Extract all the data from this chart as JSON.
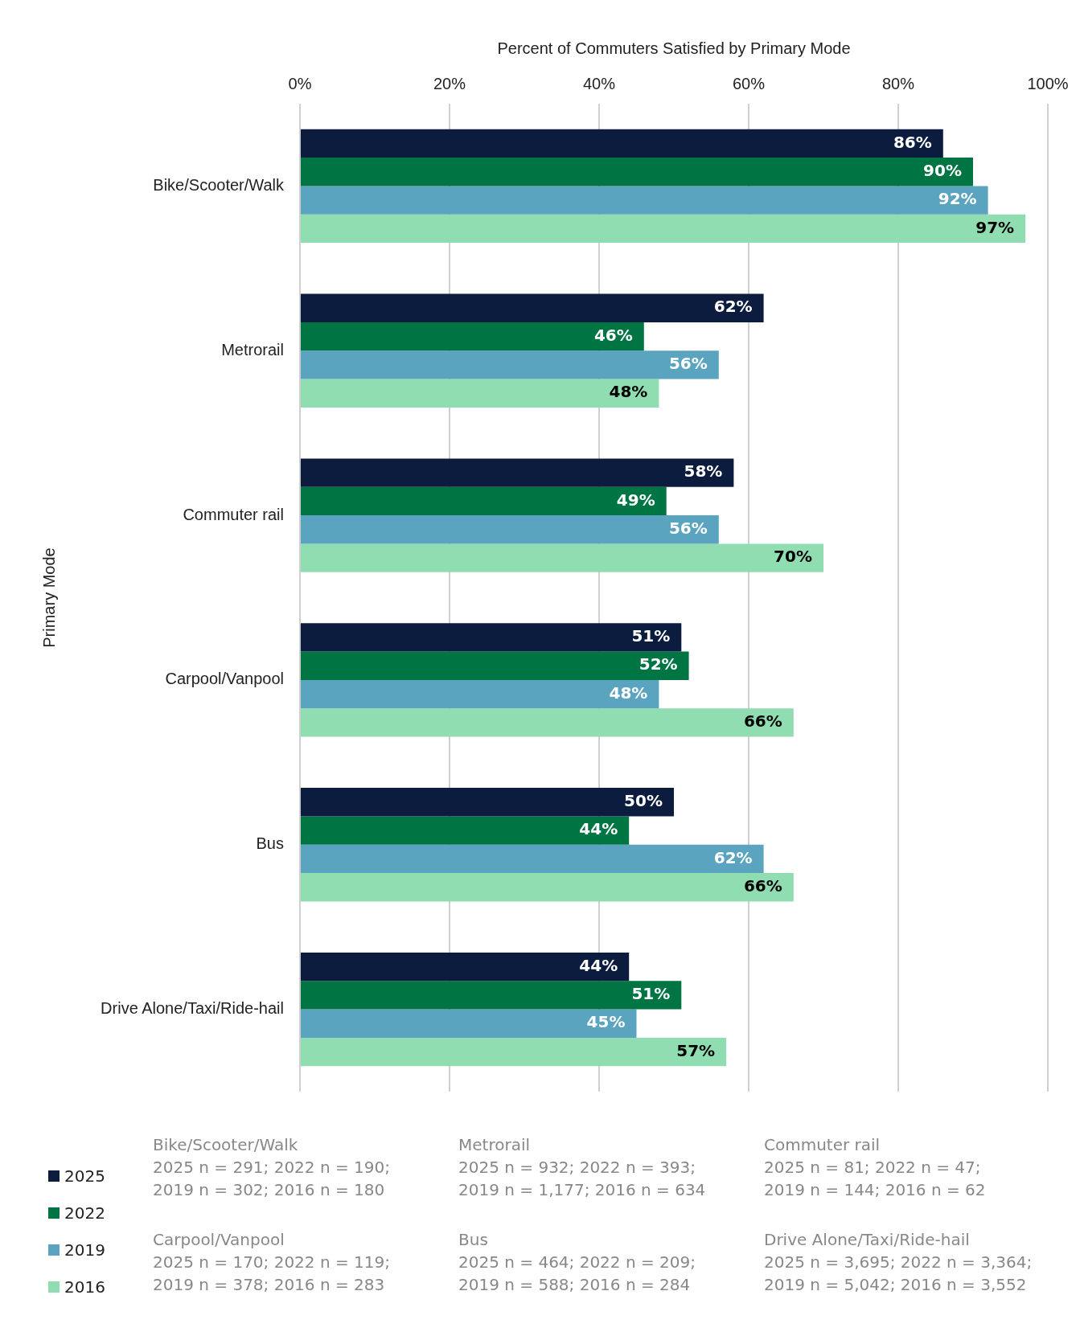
{
  "chart_data": {
    "type": "bar",
    "orientation": "horizontal",
    "xlabel": "Percent of Commuters Satisfied by Primary Mode",
    "ylabel": "Primary Mode",
    "categories": [
      "Bike/Scooter/Walk",
      "Metrorail",
      "Commuter rail",
      "Carpool/Vanpool",
      "Bus",
      "Drive Alone/Taxi/Ride-hail"
    ],
    "series": [
      {
        "name": "2025",
        "color": "#0b1c3f",
        "values": [
          86,
          62,
          58,
          51,
          50,
          44
        ]
      },
      {
        "name": "2022",
        "color": "#007544",
        "values": [
          90,
          46,
          49,
          52,
          44,
          51
        ]
      },
      {
        "name": "2019",
        "color": "#5ba4c0",
        "values": [
          92,
          56,
          56,
          48,
          62,
          45
        ]
      },
      {
        "name": "2016",
        "color": "#8fddb0",
        "values": [
          97,
          48,
          70,
          66,
          66,
          57
        ]
      }
    ],
    "xlim": [
      0,
      100
    ],
    "xticks": [
      {
        "value": 0,
        "label": "0%"
      },
      {
        "value": 20,
        "label": "20%"
      },
      {
        "value": 40,
        "label": "40%"
      },
      {
        "value": 60,
        "label": "60%"
      },
      {
        "value": 80,
        "label": "80%"
      },
      {
        "value": 100,
        "label": "100%"
      }
    ],
    "value_labels": [
      [
        "86%",
        "62%",
        "58%",
        "51%",
        "50%",
        "44%"
      ],
      [
        "90%",
        "46%",
        "49%",
        "52%",
        "44%",
        "51%"
      ],
      [
        "92%",
        "56%",
        "56%",
        "48%",
        "62%",
        "45%"
      ],
      [
        "97%",
        "48%",
        "70%",
        "66%",
        "66%",
        "57%"
      ]
    ],
    "grid": "x",
    "legend": "bottom left",
    "annotations": [
      "Bike/Scooter/Walk\n2025 n = 291; 2022 n = 190;\n2019 n = 302; 2016 n = 180",
      "Metrorail\n2025 n = 932; 2022 n = 393;\n2019 n = 1,177; 2016 n = 634",
      "Commuter rail\n2025 n = 81; 2022 n = 47;\n2019 n = 144; 2016 n = 62",
      "Carpool/Vanpool\n2025 n = 170; 2022 n = 119;\n2019 n = 378; 2016 n = 283",
      "Bus\n2025 n = 464; 2022 n = 209;\n2019 n = 588; 2016 n = 284",
      "Drive Alone/Taxi/Ride-hail\n2025 n = 3,695; 2022 n = 3,364;\n2019 n = 5,042; 2016 n = 3,552"
    ]
  }
}
